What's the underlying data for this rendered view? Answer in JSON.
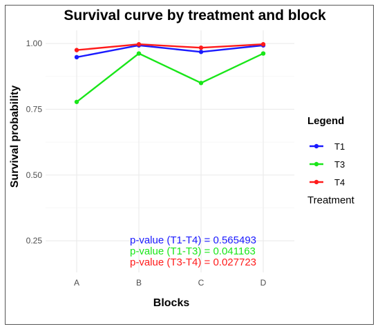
{
  "chart_data": {
    "type": "line",
    "title": "Survival curve by treatment and block",
    "xlabel": "Blocks",
    "ylabel": "Survival probability",
    "categories": [
      "A",
      "B",
      "C",
      "D"
    ],
    "y_ticks": [
      "0.25",
      "0.50",
      "0.75",
      "1.00"
    ],
    "ylim": [
      0.13,
      1.05
    ],
    "grid": true,
    "legend_placement": "right",
    "legend_title": "Legend",
    "legend_subtitle": "Treatment",
    "series": [
      {
        "name": "T1",
        "color": "#1a1aff",
        "values": [
          0.948,
          0.993,
          0.968,
          0.993
        ]
      },
      {
        "name": "T3",
        "color": "#19e619",
        "values": [
          0.778,
          0.962,
          0.85,
          0.962
        ]
      },
      {
        "name": "T4",
        "color": "#ff1a1a",
        "values": [
          0.975,
          0.997,
          0.984,
          0.997
        ]
      }
    ],
    "annotations": [
      {
        "text": "p-value (T1-T4) = 0.565493",
        "color": "#1a1aff"
      },
      {
        "text": "p-value (T1-T3) = 0.041163",
        "color": "#19e619"
      },
      {
        "text": "p-value (T3-T4) = 0.027723",
        "color": "#ff1a1a"
      }
    ]
  }
}
